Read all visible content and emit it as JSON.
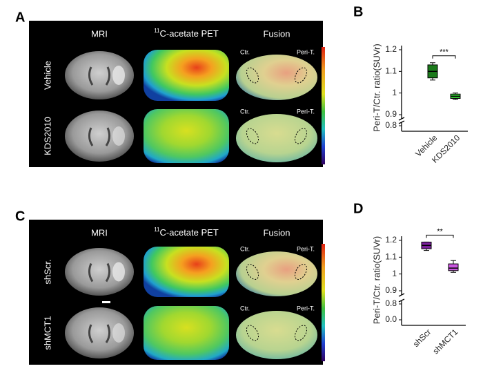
{
  "figure": {
    "panels": [
      {
        "label": "A",
        "columns": [
          "MRI",
          "C-acetate PET",
          "Fusion"
        ],
        "isotope": "11",
        "rows": [
          "Vehicle",
          "KDS2010"
        ],
        "roi_left": "Ctr.",
        "roi_right": "Peri-T."
      },
      {
        "label": "C",
        "columns": [
          "MRI",
          "C-acetate PET",
          "Fusion"
        ],
        "isotope": "11",
        "rows": [
          "shScr.",
          "shMCT1"
        ],
        "roi_left": "Ctr.",
        "roi_right": "Peri-T."
      }
    ]
  },
  "chart_data": [
    {
      "type": "box",
      "panel_label": "B",
      "y_label": "Peri-T/Ctr. ratio(SUVr)",
      "categories": [
        "Vehicle",
        "KDS2010"
      ],
      "colors": [
        "#1b7a1b",
        "#33c933"
      ],
      "boxes": [
        {
          "min": 1.06,
          "q1": 1.07,
          "median": 1.1,
          "q3": 1.13,
          "max": 1.14
        },
        {
          "min": 0.97,
          "q1": 0.975,
          "median": 0.985,
          "q3": 0.995,
          "max": 1.0
        }
      ],
      "significance": "***",
      "ylim": [
        0.9,
        1.2
      ],
      "yticks": [
        0.9,
        1.0,
        1.1,
        1.2
      ],
      "lower_ylim": [
        0.8,
        0.8
      ],
      "lower_yticks": [
        0.8
      ]
    },
    {
      "type": "box",
      "panel_label": "D",
      "y_label": "Peri-T/Ctr. ratio(SUVr)",
      "categories": [
        "shScr",
        "shMCT1"
      ],
      "colors": [
        "#7b1f9c",
        "#c955de"
      ],
      "boxes": [
        {
          "min": 1.14,
          "q1": 1.15,
          "median": 1.17,
          "q3": 1.19,
          "max": 1.19
        },
        {
          "min": 1.01,
          "q1": 1.02,
          "median": 1.035,
          "q3": 1.06,
          "max": 1.08
        }
      ],
      "significance": "**",
      "ylim": [
        0.9,
        1.2
      ],
      "yticks": [
        0.9,
        1.0,
        1.1,
        1.2
      ],
      "lower_ylim": [
        0,
        0.8
      ],
      "lower_yticks": [
        0.0,
        0.8
      ]
    }
  ]
}
